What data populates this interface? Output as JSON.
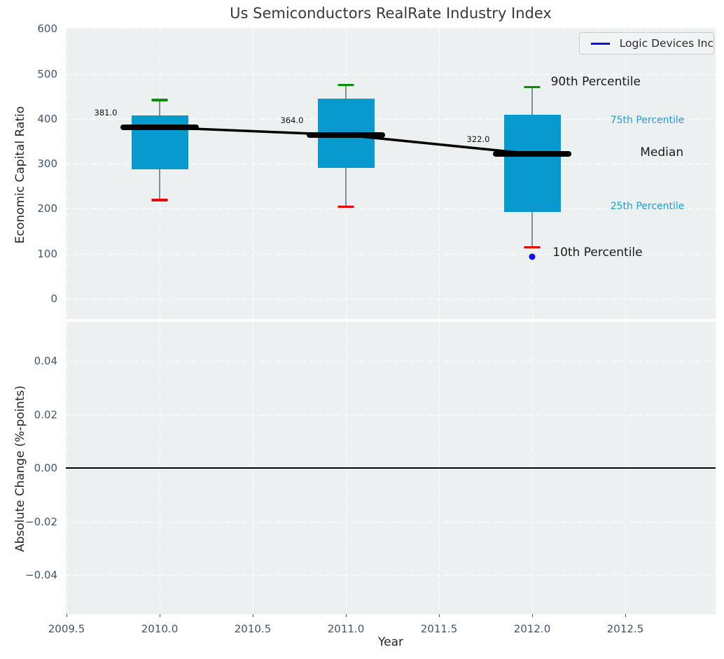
{
  "title": "Us Semiconductors RealRate Industry Index",
  "legend": {
    "label": "Logic Devices Inc",
    "line_color": "#1010e6"
  },
  "colors": {
    "box_fill": "#0899cf",
    "p90_cap": "#089000",
    "p10_cap": "#e60000",
    "median_line": "#000000",
    "trend_line": "#000000",
    "company_marker": "#1010e6",
    "plot_background": "#ecf0f1",
    "grid": "#ffffff",
    "tick_label": "#3f566e",
    "annotation_teal": "#1b9fd6"
  },
  "chart_data": [
    {
      "type": "box",
      "title": "Us Semiconductors RealRate Industry Index",
      "ylabel": "Economic Capital Ratio",
      "ylim": [
        -45,
        602
      ],
      "xlim": [
        2009.5,
        2012.99
      ],
      "grid": true,
      "legend_position": "upper right",
      "yticks": [
        {
          "v": 0,
          "label": "0"
        },
        {
          "v": 100,
          "label": "100"
        },
        {
          "v": 200,
          "label": "200"
        },
        {
          "v": 300,
          "label": "300"
        },
        {
          "v": 400,
          "label": "400"
        },
        {
          "v": 500,
          "label": "500"
        },
        {
          "v": 600,
          "label": "600"
        }
      ],
      "series": [
        {
          "year": 2010,
          "p10": 220,
          "q1": 288,
          "median": 381,
          "q3": 407,
          "p90": 442,
          "label": "381.0"
        },
        {
          "year": 2011,
          "p10": 205,
          "q1": 291,
          "median": 364,
          "q3": 445,
          "p90": 475,
          "label": "364.0"
        },
        {
          "year": 2012,
          "p10": 115,
          "q1": 193,
          "median": 322,
          "q3": 409,
          "p90": 471,
          "label": "322.0"
        }
      ],
      "median_trend": [
        {
          "year": 2010,
          "value": 381
        },
        {
          "year": 2011,
          "value": 364
        },
        {
          "year": 2012,
          "value": 322
        }
      ],
      "company_point": {
        "name": "Logic Devices Inc",
        "year": 2012,
        "value": 94
      },
      "annotations": [
        {
          "text": "90th Percentile",
          "x": 2012.1,
          "y": 483,
          "style": "black-lg"
        },
        {
          "text": "75th Percentile",
          "x": 2012.42,
          "y": 397,
          "style": "teal"
        },
        {
          "text": "Median",
          "x": 2012.58,
          "y": 325,
          "style": "black-lg"
        },
        {
          "text": "25th Percentile",
          "x": 2012.42,
          "y": 205,
          "style": "teal"
        },
        {
          "text": "10th Percentile",
          "x": 2012.11,
          "y": 103,
          "style": "black-lg"
        }
      ]
    },
    {
      "type": "line",
      "ylabel": "Absolute Change (%-points)",
      "xlabel": "Year",
      "ylim": [
        -0.055,
        0.055
      ],
      "grid": true,
      "zero_line": true,
      "series": [],
      "yticks": [
        {
          "v": 0.04,
          "label": "0.04"
        },
        {
          "v": 0.02,
          "label": "0.02"
        },
        {
          "v": 0.0,
          "label": "0.00"
        },
        {
          "v": -0.02,
          "label": "−0.02"
        },
        {
          "v": -0.04,
          "label": "−0.04"
        }
      ],
      "xticks": [
        {
          "v": 2009.5,
          "label": "2009.5"
        },
        {
          "v": 2010.0,
          "label": "2010.0"
        },
        {
          "v": 2010.5,
          "label": "2010.5"
        },
        {
          "v": 2011.0,
          "label": "2011.0"
        },
        {
          "v": 2011.5,
          "label": "2011.5"
        },
        {
          "v": 2012.0,
          "label": "2012.0"
        },
        {
          "v": 2012.5,
          "label": "2012.5"
        }
      ]
    }
  ]
}
